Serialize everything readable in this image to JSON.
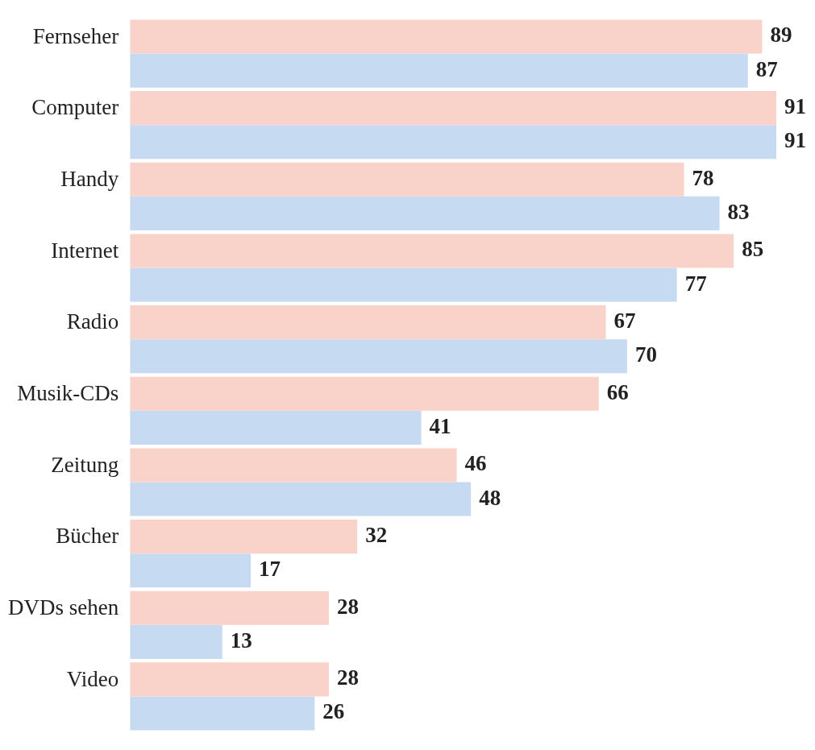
{
  "chart_data": {
    "type": "bar",
    "orientation": "horizontal",
    "categories": [
      "Fernseher",
      "Computer",
      "Handy",
      "Internet",
      "Radio",
      "Musik-CDs",
      "Zeitung",
      "Bücher",
      "DVDs sehen",
      "Video"
    ],
    "series": [
      {
        "color": "#f9d3c9",
        "values": [
          89,
          91,
          78,
          85,
          67,
          66,
          46,
          32,
          28,
          28
        ]
      },
      {
        "color": "#c6daf1",
        "values": [
          87,
          91,
          83,
          77,
          70,
          41,
          48,
          17,
          13,
          26
        ]
      }
    ],
    "data_labels": true,
    "legend": false
  }
}
